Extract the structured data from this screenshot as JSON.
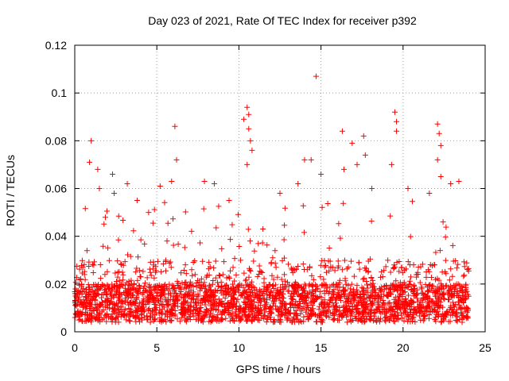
{
  "chart_data": {
    "type": "scatter",
    "title": "Day 023 of 2021, Rate Of TEC Index for receiver p392",
    "xlabel": "GPS time / hours",
    "ylabel": "ROTI / TECUs",
    "xlim": [
      0,
      25
    ],
    "ylim": [
      0,
      0.12
    ],
    "x_ticks": [
      0,
      5,
      10,
      15,
      20,
      25
    ],
    "x_tick_labels": [
      "0",
      "5",
      "10",
      "15",
      "20",
      "25"
    ],
    "y_ticks": [
      0,
      0.02,
      0.04,
      0.06,
      0.08,
      0.1,
      0.12
    ],
    "y_tick_labels": [
      "0",
      "0.02",
      "0.04",
      "0.06",
      "0.08",
      "0.1",
      "0.12"
    ],
    "grid": true,
    "marker": "+",
    "color": "#ff0000",
    "series": [
      {
        "name": "ROTI",
        "description": "dense band of observations between about 0.005 and 0.03 from hour 0 to 24, with scattered peaks",
        "band": {
          "x_start": 0,
          "x_end": 24,
          "y_low": 0.004,
          "y_high": 0.03
        },
        "outliers": [
          {
            "x": 1.0,
            "y": 0.08
          },
          {
            "x": 0.9,
            "y": 0.071
          },
          {
            "x": 1.4,
            "y": 0.068
          },
          {
            "x": 1.5,
            "y": 0.06
          },
          {
            "x": 2.3,
            "y": 0.066
          },
          {
            "x": 2.4,
            "y": 0.058
          },
          {
            "x": 3.2,
            "y": 0.062
          },
          {
            "x": 3.8,
            "y": 0.055
          },
          {
            "x": 4.5,
            "y": 0.05
          },
          {
            "x": 5.2,
            "y": 0.061
          },
          {
            "x": 5.9,
            "y": 0.063
          },
          {
            "x": 6.1,
            "y": 0.086
          },
          {
            "x": 6.2,
            "y": 0.072
          },
          {
            "x": 7.9,
            "y": 0.063
          },
          {
            "x": 8.5,
            "y": 0.062
          },
          {
            "x": 9.4,
            "y": 0.055
          },
          {
            "x": 10.3,
            "y": 0.089
          },
          {
            "x": 10.5,
            "y": 0.094
          },
          {
            "x": 10.6,
            "y": 0.091
          },
          {
            "x": 10.6,
            "y": 0.085
          },
          {
            "x": 10.7,
            "y": 0.08
          },
          {
            "x": 10.8,
            "y": 0.076
          },
          {
            "x": 10.5,
            "y": 0.07
          },
          {
            "x": 12.5,
            "y": 0.058
          },
          {
            "x": 13.6,
            "y": 0.062
          },
          {
            "x": 14.0,
            "y": 0.072
          },
          {
            "x": 14.4,
            "y": 0.072
          },
          {
            "x": 14.7,
            "y": 0.107
          },
          {
            "x": 15.0,
            "y": 0.066
          },
          {
            "x": 16.3,
            "y": 0.084
          },
          {
            "x": 16.4,
            "y": 0.068
          },
          {
            "x": 16.9,
            "y": 0.079
          },
          {
            "x": 17.2,
            "y": 0.07
          },
          {
            "x": 17.6,
            "y": 0.082
          },
          {
            "x": 17.7,
            "y": 0.074
          },
          {
            "x": 18.1,
            "y": 0.06
          },
          {
            "x": 19.5,
            "y": 0.092
          },
          {
            "x": 19.6,
            "y": 0.088
          },
          {
            "x": 19.6,
            "y": 0.084
          },
          {
            "x": 19.3,
            "y": 0.07
          },
          {
            "x": 20.3,
            "y": 0.06
          },
          {
            "x": 21.6,
            "y": 0.058
          },
          {
            "x": 22.1,
            "y": 0.087
          },
          {
            "x": 22.2,
            "y": 0.083
          },
          {
            "x": 22.3,
            "y": 0.078
          },
          {
            "x": 22.1,
            "y": 0.072
          },
          {
            "x": 22.3,
            "y": 0.065
          },
          {
            "x": 22.9,
            "y": 0.062
          },
          {
            "x": 23.4,
            "y": 0.063
          }
        ]
      }
    ]
  }
}
